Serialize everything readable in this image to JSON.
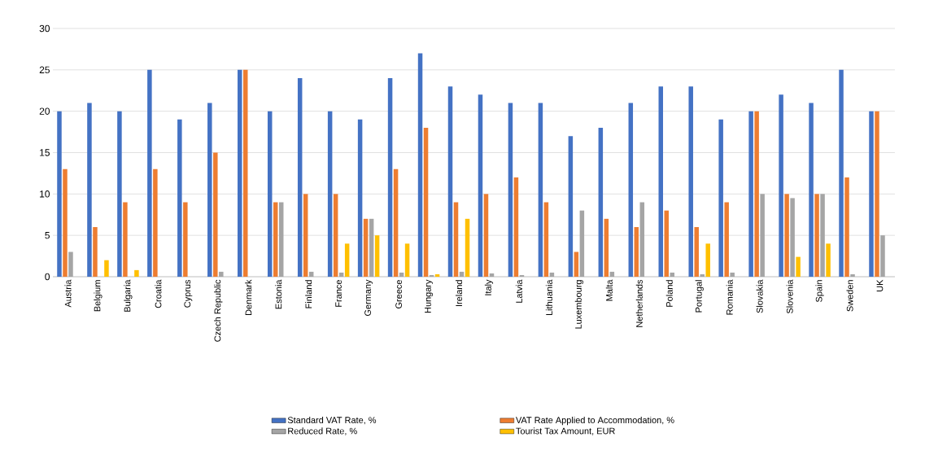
{
  "chart_data": {
    "type": "bar",
    "categories": [
      "Austria",
      "Belgium",
      "Bulgaria",
      "Croatia",
      "Cyprus",
      "Czech Republic",
      "Denmark",
      "Estonia",
      "Finland",
      "France",
      "Germany",
      "Greece",
      "Hungary",
      "Ireland",
      "Italy",
      "Latvia",
      "Lithuania",
      "Luxembourg",
      "Malta",
      "Netherlands",
      "Poland",
      "Portugal",
      "Romania",
      "Slovakia",
      "Slovenia",
      "Spain",
      "Sweden",
      "UK"
    ],
    "series": [
      {
        "name": "Standard VAT Rate, %",
        "color": "#4472c4",
        "values": [
          20,
          21,
          20,
          25,
          19,
          21,
          25,
          20,
          24,
          20,
          19,
          24,
          27,
          23,
          22,
          21,
          21,
          17,
          18,
          21,
          23,
          23,
          19,
          20,
          22,
          21,
          25,
          20
        ]
      },
      {
        "name": "VAT Rate Applied to Accommodation, %",
        "color": "#ed7d31",
        "values": [
          13,
          6,
          9,
          13,
          9,
          15,
          25,
          9,
          10,
          10,
          7,
          13,
          18,
          9,
          10,
          12,
          9,
          3,
          7,
          6,
          8,
          6,
          9,
          20,
          10,
          10,
          12,
          20
        ]
      },
      {
        "name": "Reduced Rate, %",
        "color": "#a5a5a5",
        "values": [
          3,
          null,
          null,
          null,
          null,
          0.6,
          null,
          9,
          0.6,
          0.5,
          7,
          0.5,
          0.2,
          0.6,
          0.4,
          0.2,
          0.5,
          8,
          0.6,
          9,
          0.5,
          0.3,
          0.5,
          10,
          9.5,
          10,
          0.3,
          5
        ]
      },
      {
        "name": "Tourist Tax Amount, EUR",
        "color": "#ffc000",
        "values": [
          null,
          2,
          0.8,
          null,
          null,
          null,
          null,
          null,
          null,
          4,
          5,
          4,
          0.3,
          7,
          null,
          null,
          null,
          null,
          null,
          null,
          null,
          4,
          null,
          null,
          2.4,
          4,
          null,
          null
        ]
      }
    ],
    "ylim": [
      0,
      30
    ],
    "yticks": [
      0,
      5,
      10,
      15,
      20,
      25,
      30
    ],
    "grid": "y",
    "legend": "bottom"
  }
}
